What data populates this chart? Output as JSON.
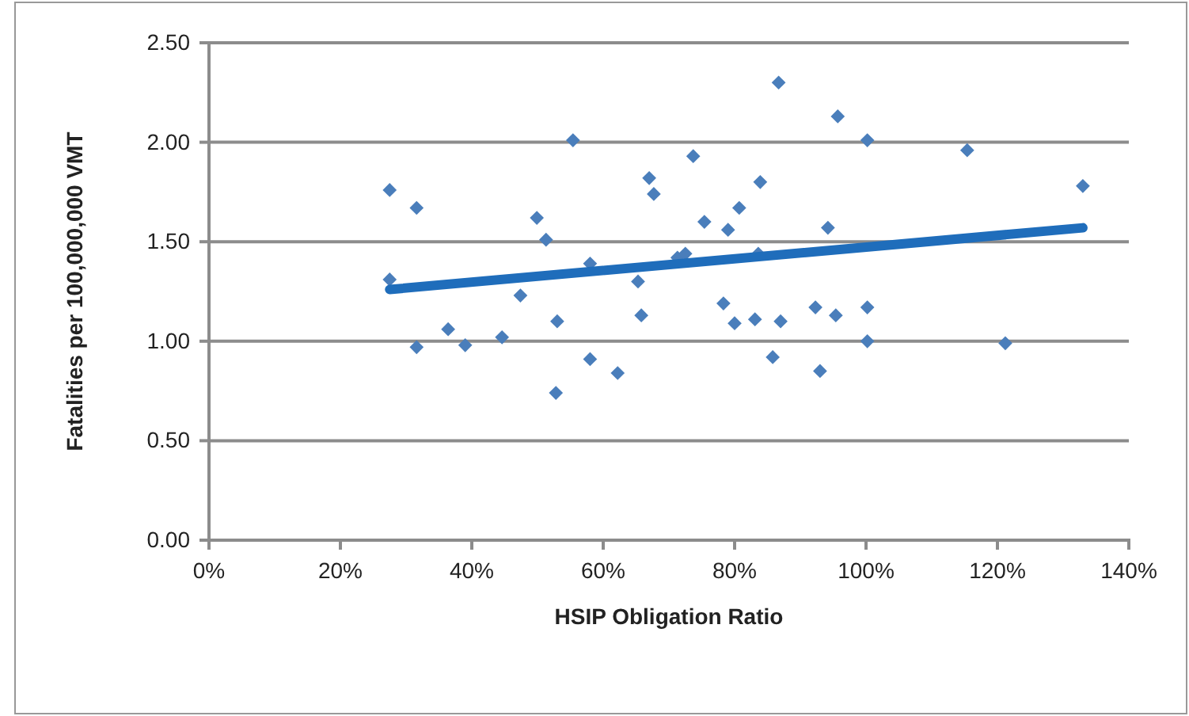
{
  "chart_data": {
    "type": "scatter",
    "xlabel": "HSIP Obligation  Ratio",
    "ylabel": "Fatalities per 100,000,000 VMT",
    "xlim": [
      0,
      140
    ],
    "ylim": [
      0,
      2.5
    ],
    "xticks": [
      {
        "value": 0,
        "label": "0%"
      },
      {
        "value": 20,
        "label": "20%"
      },
      {
        "value": 40,
        "label": "40%"
      },
      {
        "value": 60,
        "label": "60%"
      },
      {
        "value": 80,
        "label": "80%"
      },
      {
        "value": 100,
        "label": "100%"
      },
      {
        "value": 120,
        "label": "120%"
      },
      {
        "value": 140,
        "label": "140%"
      }
    ],
    "yticks": [
      {
        "value": 0,
        "label": "0.00"
      },
      {
        "value": 0.5,
        "label": "0.50"
      },
      {
        "value": 1,
        "label": "1.00"
      },
      {
        "value": 1.5,
        "label": "1.50"
      },
      {
        "value": 2,
        "label": "2.00"
      },
      {
        "value": 2.5,
        "label": "2.50"
      }
    ],
    "grid": "y",
    "series": [
      {
        "type": "scatter",
        "marker": "diamond",
        "color": "#4a7ebb",
        "x": [
          27.5,
          27.5,
          31.6,
          31.6,
          36.4,
          39,
          44.6,
          47.4,
          49.9,
          51.3,
          53,
          52.8,
          55.4,
          58,
          58,
          62.2,
          65.3,
          65.8,
          67,
          67.7,
          71.3,
          72.5,
          73.7,
          75.4,
          78.3,
          79,
          80,
          80.7,
          83.1,
          83.9,
          83.6,
          85.8,
          86.7,
          87,
          92.3,
          93,
          94.2,
          95.7,
          95.4,
          100.2,
          100.2,
          100.2,
          115.4,
          121.2,
          133
        ],
        "values": [
          1.76,
          1.31,
          1.67,
          0.97,
          1.06,
          0.98,
          1.02,
          1.23,
          1.62,
          1.51,
          1.1,
          0.74,
          2.01,
          1.39,
          0.91,
          0.84,
          1.3,
          1.13,
          1.82,
          1.74,
          1.42,
          1.44,
          1.93,
          1.6,
          1.19,
          1.56,
          1.09,
          1.67,
          1.11,
          1.8,
          1.44,
          0.92,
          2.3,
          1.1,
          1.17,
          0.85,
          1.57,
          2.13,
          1.13,
          2.01,
          1.17,
          1,
          1.96,
          0.99,
          1.78
        ]
      },
      {
        "type": "line",
        "color": "#1f6dbb",
        "x": [
          27.5,
          133
        ],
        "values": [
          1.26,
          1.57
        ],
        "line_style": "solid"
      }
    ]
  }
}
